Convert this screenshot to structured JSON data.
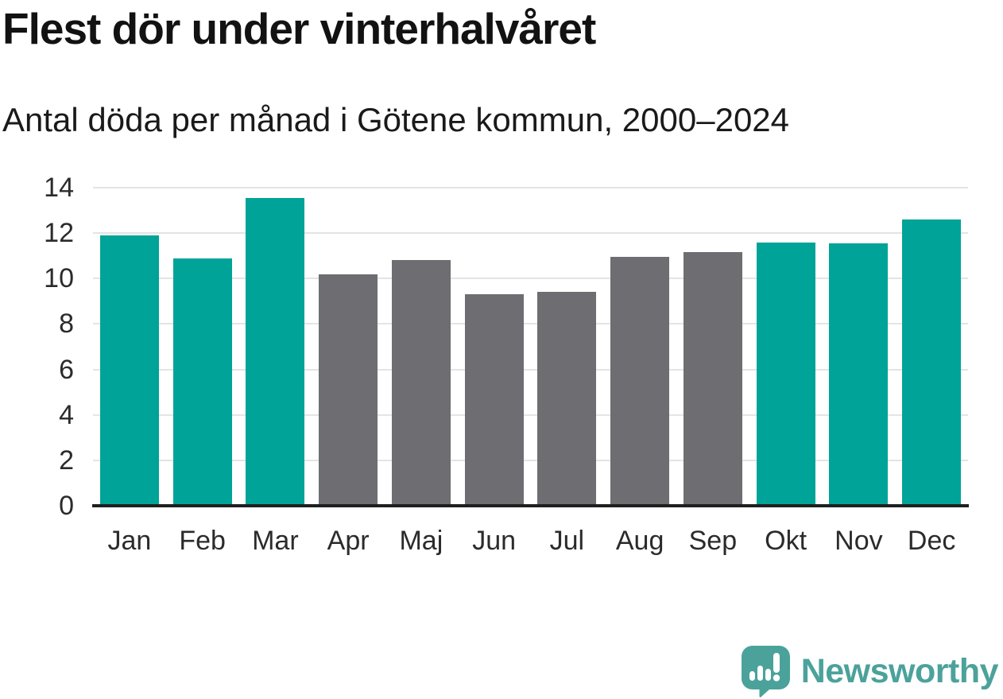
{
  "header": {
    "title": "Flest dör under vinterhalvåret",
    "subtitle": "Antal döda per månad i Götene kommun, 2000–2024"
  },
  "chart_data": {
    "type": "bar",
    "title": "Flest dör under vinterhalvåret",
    "subtitle": "Antal döda per månad i Götene kommun, 2000–2024",
    "categories": [
      "Jan",
      "Feb",
      "Mar",
      "Apr",
      "Maj",
      "Jun",
      "Jul",
      "Aug",
      "Sep",
      "Okt",
      "Nov",
      "Dec"
    ],
    "values": [
      11.9,
      10.9,
      13.55,
      10.2,
      10.8,
      9.3,
      9.4,
      10.95,
      11.15,
      11.6,
      11.55,
      12.6
    ],
    "bar_color_keys": [
      "winter",
      "winter",
      "winter",
      "summer",
      "summer",
      "summer",
      "summer",
      "summer",
      "summer",
      "winter",
      "winter",
      "winter"
    ],
    "bar_palette": {
      "winter": "#00a398",
      "summer": "#6d6d72"
    },
    "ylim": [
      0,
      14
    ],
    "yticks": [
      0,
      2,
      4,
      6,
      8,
      10,
      12,
      14
    ],
    "xlabel": "",
    "ylabel": "",
    "grid": "horizontal",
    "legend": "none"
  },
  "footer": {
    "brand": "Newsworthy",
    "brand_color": "#4ba29b",
    "logo_icon": "speech-bubble-bar-chart-exclamation"
  },
  "colors": {
    "highlight_teal": "#00a398",
    "neutral_gray": "#6d6d72",
    "gridline": "#e4e4e4",
    "axis_line": "#1f1f1f",
    "title_text": "#121212",
    "tick_text": "#2b2b2b"
  }
}
